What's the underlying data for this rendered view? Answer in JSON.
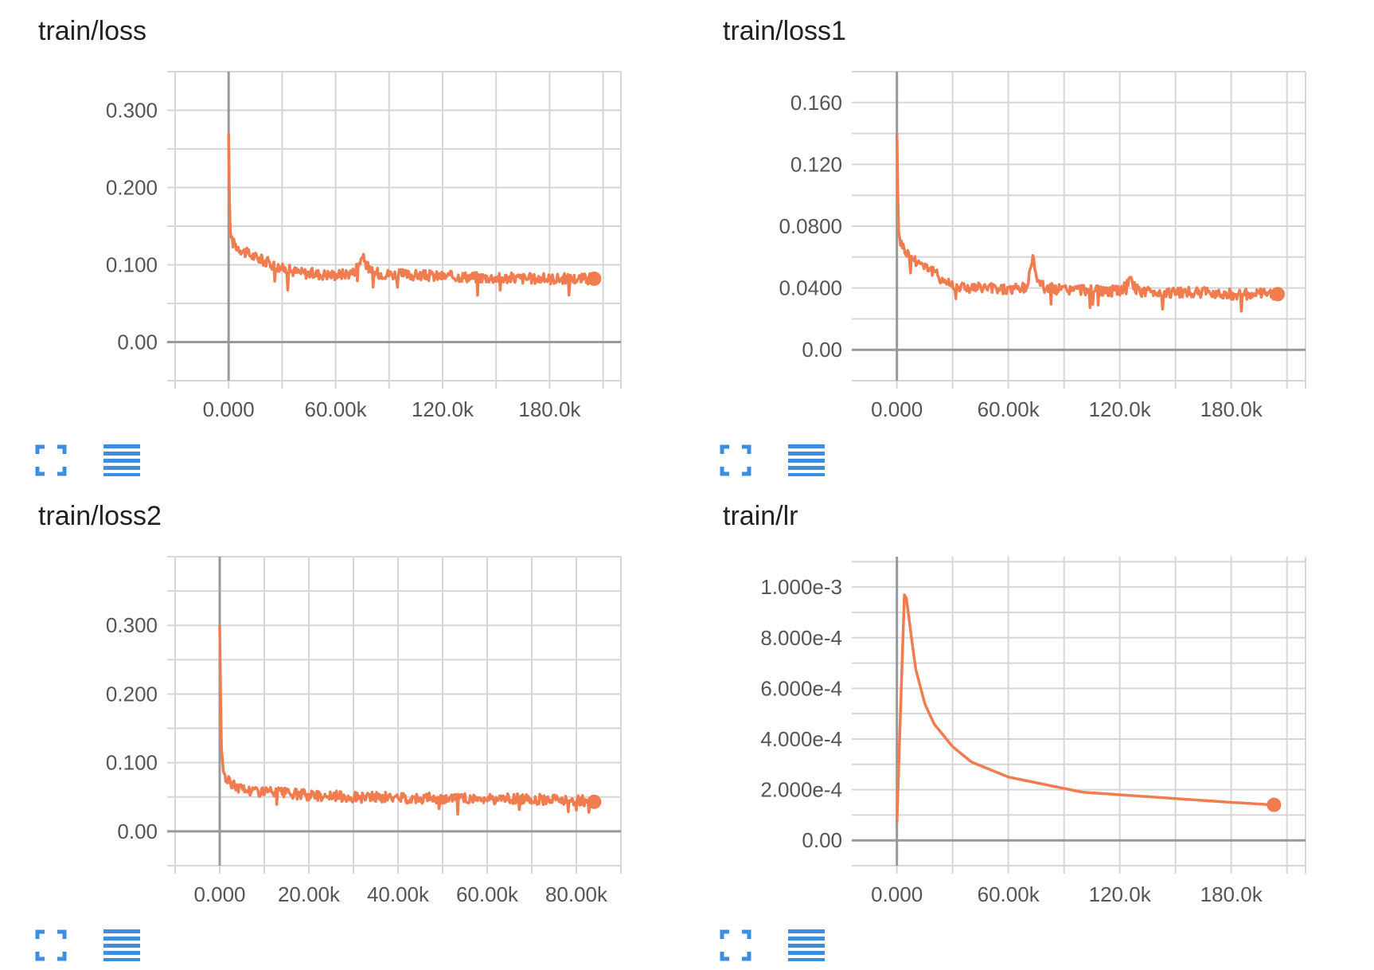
{
  "colors": {
    "line": "#f07c50",
    "grid": "#d6d6d6",
    "axis": "#999999",
    "icon": "#3b8ee2"
  },
  "icons": {
    "expand": "expand-icon",
    "data": "list-icon"
  },
  "chart_data": [
    {
      "type": "line",
      "title": "train/loss",
      "xlim": [
        -30000,
        220000
      ],
      "ylim": [
        -0.05,
        0.35
      ],
      "xticks": [
        0,
        60000,
        120000,
        180000
      ],
      "xtick_labels": [
        "0.000",
        "60.00k",
        "120.0k",
        "180.0k"
      ],
      "yticks": [
        0,
        0.1,
        0.2,
        0.3
      ],
      "ytick_labels": [
        "0.00",
        "0.100",
        "0.200",
        "0.300"
      ],
      "x": [
        0,
        500,
        1000,
        2000,
        4000,
        7000,
        10000,
        15000,
        20000,
        25000,
        30000,
        40000,
        50000,
        60000,
        70000,
        75000,
        80000,
        90000,
        100000,
        110000,
        120000,
        130000,
        140000,
        150000,
        160000,
        170000,
        180000,
        190000,
        200000,
        205000
      ],
      "y": [
        0.27,
        0.18,
        0.14,
        0.13,
        0.125,
        0.12,
        0.115,
        0.11,
        0.105,
        0.1,
        0.095,
        0.09,
        0.088,
        0.087,
        0.09,
        0.11,
        0.09,
        0.088,
        0.087,
        0.086,
        0.085,
        0.085,
        0.084,
        0.083,
        0.083,
        0.082,
        0.082,
        0.082,
        0.082,
        0.082
      ],
      "grid": true
    },
    {
      "type": "line",
      "title": "train/loss1",
      "xlim": [
        -20000,
        220000
      ],
      "ylim": [
        -0.02,
        0.18
      ],
      "xticks": [
        0,
        60000,
        120000,
        180000
      ],
      "xtick_labels": [
        "0.000",
        "60.00k",
        "120.0k",
        "180.0k"
      ],
      "yticks": [
        0,
        0.04,
        0.08,
        0.12,
        0.16
      ],
      "ytick_labels": [
        "0.00",
        "0.0400",
        "0.0800",
        "0.120",
        "0.160"
      ],
      "x": [
        0,
        500,
        1000,
        2000,
        4000,
        7000,
        10000,
        15000,
        20000,
        25000,
        30000,
        40000,
        50000,
        60000,
        70000,
        73000,
        76000,
        80000,
        90000,
        100000,
        110000,
        120000,
        125000,
        130000,
        140000,
        150000,
        160000,
        170000,
        180000,
        190000,
        200000,
        205000
      ],
      "y": [
        0.14,
        0.1,
        0.075,
        0.07,
        0.065,
        0.06,
        0.058,
        0.055,
        0.05,
        0.045,
        0.042,
        0.04,
        0.04,
        0.039,
        0.04,
        0.06,
        0.045,
        0.04,
        0.039,
        0.039,
        0.038,
        0.038,
        0.045,
        0.038,
        0.037,
        0.037,
        0.037,
        0.037,
        0.036,
        0.036,
        0.036,
        0.036
      ],
      "grid": true
    },
    {
      "type": "line",
      "title": "train/loss2",
      "xlim": [
        -10000,
        90000
      ],
      "ylim": [
        -0.05,
        0.4
      ],
      "xticks": [
        0,
        20000,
        40000,
        60000,
        80000
      ],
      "xtick_labels": [
        "0.000",
        "20.00k",
        "40.00k",
        "60.00k",
        "80.00k"
      ],
      "yticks": [
        0,
        0.1,
        0.2,
        0.3
      ],
      "ytick_labels": [
        "0.00",
        "0.100",
        "0.200",
        "0.300"
      ],
      "x": [
        0,
        200,
        400,
        800,
        1500,
        2500,
        4000,
        6000,
        10000,
        15000,
        20000,
        30000,
        40000,
        50000,
        60000,
        70000,
        80000,
        84000
      ],
      "y": [
        0.3,
        0.2,
        0.12,
        0.09,
        0.075,
        0.07,
        0.065,
        0.06,
        0.058,
        0.055,
        0.053,
        0.05,
        0.049,
        0.048,
        0.047,
        0.047,
        0.046,
        0.043
      ],
      "grid": true
    },
    {
      "type": "line",
      "title": "train/lr",
      "xlim": [
        -20000,
        220000
      ],
      "ylim": [
        -0.0001,
        0.00112
      ],
      "xticks": [
        0,
        60000,
        120000,
        180000
      ],
      "xtick_labels": [
        "0.000",
        "60.00k",
        "120.0k",
        "180.0k"
      ],
      "yticks": [
        0,
        0.0002,
        0.0004,
        0.0006,
        0.0008,
        0.001
      ],
      "ytick_labels": [
        "0.00",
        "2.000e-4",
        "4.000e-4",
        "6.000e-4",
        "8.000e-4",
        "1.000e-3"
      ],
      "x": [
        0,
        4000,
        5000,
        7000,
        10000,
        15000,
        20000,
        30000,
        40000,
        50000,
        60000,
        80000,
        100000,
        120000,
        140000,
        160000,
        180000,
        203000
      ],
      "y": [
        7e-05,
        0.00097,
        0.00096,
        0.00085,
        0.00068,
        0.00054,
        0.00046,
        0.00037,
        0.00031,
        0.00028,
        0.00025,
        0.00022,
        0.00019,
        0.00018,
        0.00017,
        0.00016,
        0.00015,
        0.00014
      ],
      "grid": true
    }
  ]
}
